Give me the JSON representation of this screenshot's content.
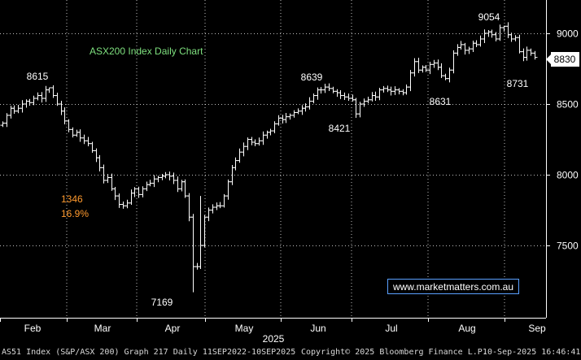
{
  "chart_data": {
    "type": "ohlc",
    "title": "ASX200 Index Daily Chart",
    "watermark": "www.marketmatters.com.au",
    "last_value_label": "8830",
    "ylim": [
      7100,
      9130
    ],
    "y_ticks": [
      7500,
      8000,
      8500,
      9000
    ],
    "x_month_labels": [
      "Feb",
      "Mar",
      "Apr",
      "May",
      "Jun",
      "Jul",
      "Aug",
      "Sep"
    ],
    "x_year_label": "2025",
    "annotations": [
      {
        "text": "8615",
        "color": "#ffffff"
      },
      {
        "text": "1346",
        "color": "#ff9a2e"
      },
      {
        "text": "16.9%",
        "color": "#ff9a2e"
      },
      {
        "text": "7169",
        "color": "#ffffff"
      },
      {
        "text": "8639",
        "color": "#ffffff"
      },
      {
        "text": "8421",
        "color": "#ffffff"
      },
      {
        "text": "8631",
        "color": "#ffffff"
      },
      {
        "text": "9054",
        "color": "#ffffff"
      },
      {
        "text": "8731",
        "color": "#ffffff"
      }
    ],
    "closes": [
      8365,
      8420,
      8470,
      8450,
      8470,
      8500,
      8520,
      8510,
      8540,
      8560,
      8540,
      8600,
      8615,
      8560,
      8500,
      8450,
      8380,
      8320,
      8280,
      8300,
      8260,
      8240,
      8220,
      8170,
      8120,
      8050,
      7960,
      7980,
      7900,
      7850,
      7790,
      7780,
      7800,
      7870,
      7900,
      7860,
      7900,
      7930,
      7940,
      7970,
      7980,
      7990,
      8000,
      7990,
      7960,
      7900,
      7950,
      7850,
      7700,
      7350,
      7350,
      7500,
      7700,
      7750,
      7770,
      7780,
      7780,
      7850,
      7950,
      8050,
      8100,
      8160,
      8200,
      8250,
      8230,
      8220,
      8240,
      8280,
      8300,
      8310,
      8360,
      8400,
      8390,
      8410,
      8420,
      8440,
      8450,
      8470,
      8480,
      8520,
      8560,
      8600,
      8600,
      8620,
      8610,
      8590,
      8580,
      8560,
      8550,
      8540,
      8530,
      8430,
      8500,
      8520,
      8530,
      8560,
      8550,
      8600,
      8610,
      8600,
      8590,
      8600,
      8590,
      8580,
      8620,
      8720,
      8800,
      8740,
      8760,
      8740,
      8780,
      8790,
      8760,
      8700,
      8680,
      8740,
      8860,
      8900,
      8920,
      8880,
      8890,
      8930,
      8920,
      8960,
      9000,
      9010,
      8990,
      8960,
      9040,
      9050,
      8990,
      8960,
      8970,
      8870,
      8830,
      8880,
      8860,
      8830
    ]
  },
  "footer": {
    "left": "AS51 Index (S&P/ASX 200) Graph 217  Daily 11SEP2022-10SEP2025",
    "middle": "Copyright© 2025 Bloomberg Finance L.P.",
    "right": "10-Sep-2025 16:46:41"
  },
  "colors": {
    "background": "#000000",
    "bars": "#ffffff",
    "grid": "#ffffff",
    "title": "#7ee07e",
    "watermark_border": "#5aa0ff",
    "watermark_text": "#ffffff",
    "annotation_orange": "#ff9a2e"
  }
}
